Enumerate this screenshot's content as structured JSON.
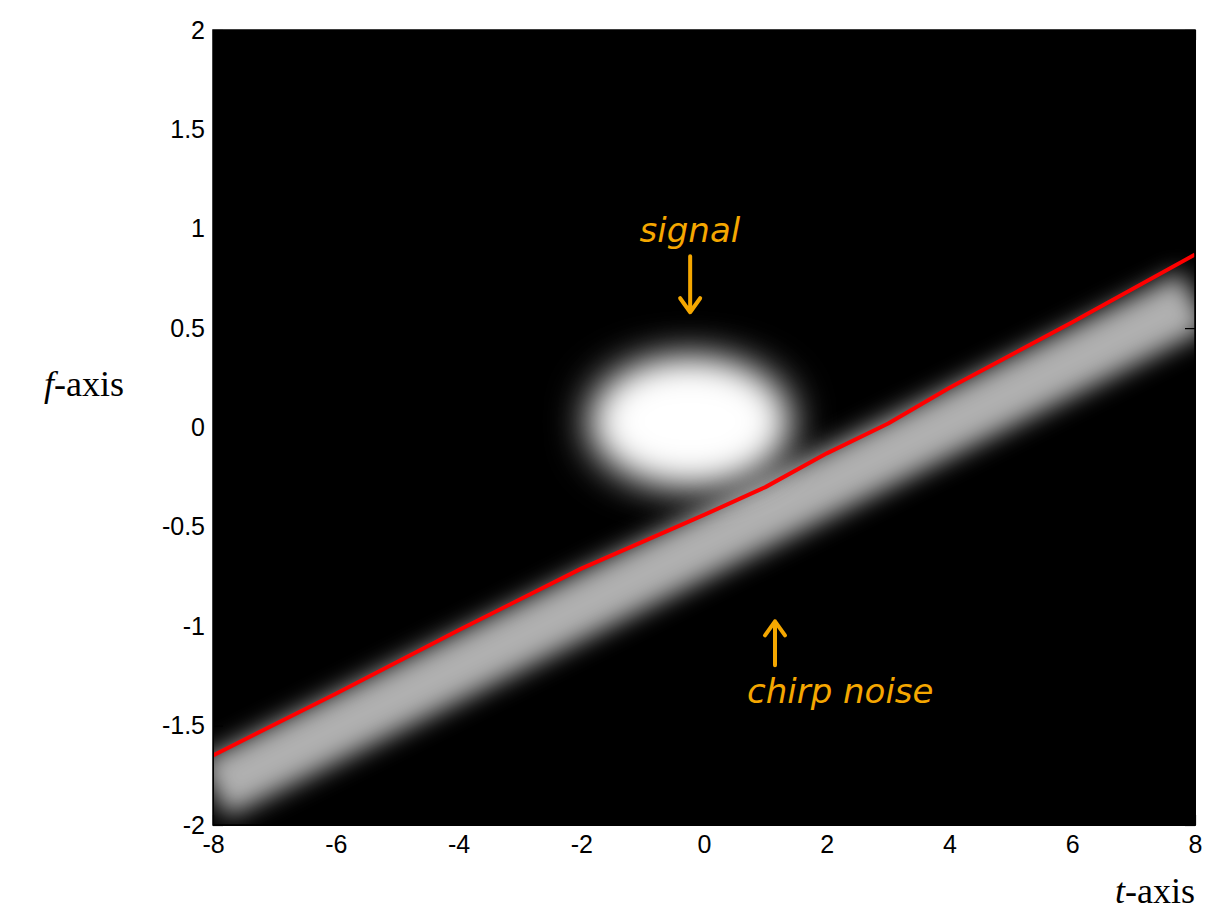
{
  "chart_data": {
    "type": "time-frequency",
    "xlabel": "t-axis",
    "ylabel": "f-axis",
    "xlim": [
      -8,
      8
    ],
    "ylim": [
      -2,
      2
    ],
    "xticks": [
      -8,
      -6,
      -4,
      -2,
      0,
      2,
      4,
      6,
      8
    ],
    "yticks": [
      -2,
      -1.5,
      -1,
      -0.5,
      0,
      0.5,
      1,
      1.5,
      2
    ],
    "signal": {
      "x": -0.23,
      "y": 0.03,
      "x_radius": 1.6,
      "y_radius": 0.3,
      "color": "#ffffff"
    },
    "chirp_noise": {
      "x": [
        -8,
        8
      ],
      "y": [
        -1.82,
        0.64
      ],
      "color": "#b0b0b0"
    },
    "line": {
      "x": [
        -8,
        -6,
        -4,
        -2,
        0,
        1,
        2,
        3,
        4,
        6,
        8
      ],
      "y": [
        -1.65,
        -1.34,
        -1.02,
        -0.71,
        -0.44,
        -0.3,
        -0.13,
        0.02,
        0.2,
        0.53,
        0.87
      ],
      "color": "#ff0000"
    },
    "annotations": [
      {
        "text": "signal",
        "x": -0.23,
        "y": 0.98,
        "color": "#f5a700"
      },
      {
        "text": "chirp noise",
        "x": 2.22,
        "y": -1.34,
        "color": "#f5a700"
      }
    ]
  }
}
